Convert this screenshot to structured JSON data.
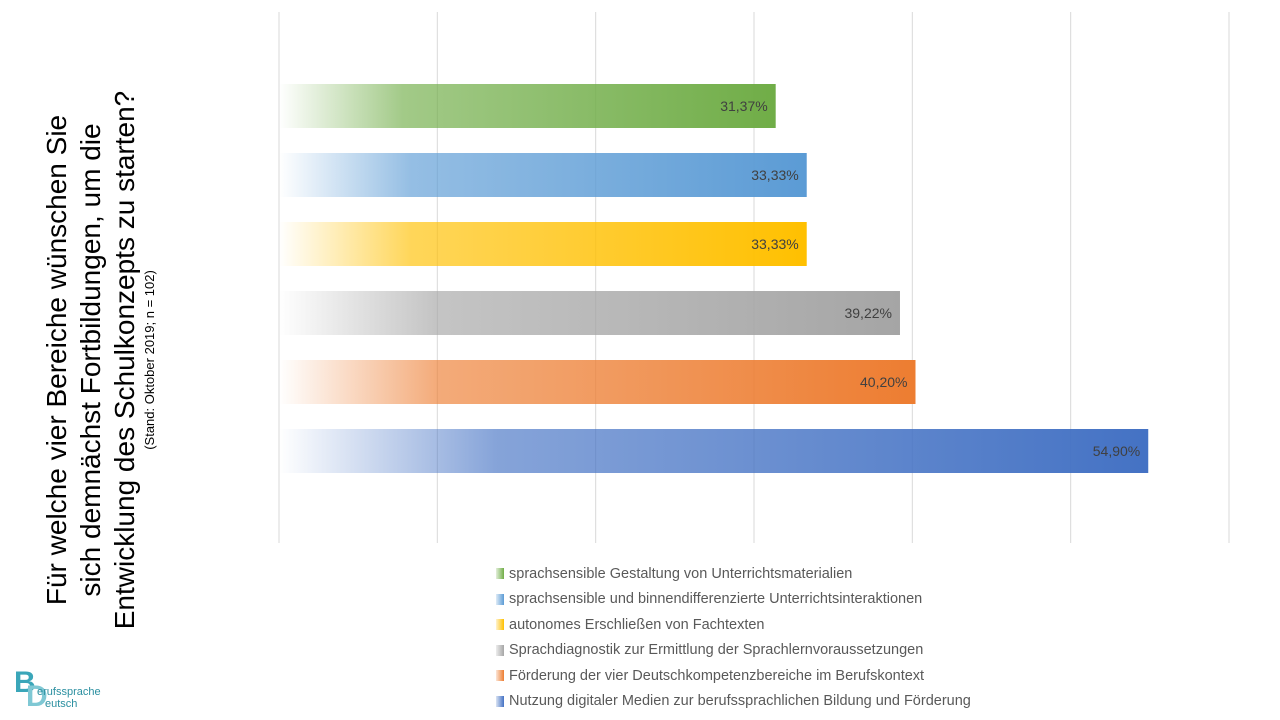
{
  "title": {
    "line1": "Für welche vier Bereiche wünschen Sie",
    "line2": "sich demnächst Fortbildungen, um die",
    "line3": "Entwicklung des Schulkonzepts zu starten?",
    "subtitle": "(Stand: Oktober 2019; n = 102)"
  },
  "chart_data": {
    "type": "bar",
    "orientation": "horizontal",
    "xlim": [
      0,
      60
    ],
    "grid": true,
    "legend_position": "bottom",
    "series": [
      {
        "name": "sprachsensible Gestaltung von Unterrichtsmaterialien",
        "value": 31.37,
        "label": "31,37%",
        "color": "#70ad47"
      },
      {
        "name": "sprachsensible und binnendifferenzierte Unterrichtsinteraktionen",
        "value": 33.33,
        "label": "33,33%",
        "color": "#5b9bd5"
      },
      {
        "name": "autonomes Erschließen von Fachtexten",
        "value": 33.33,
        "label": "33,33%",
        "color": "#ffc000"
      },
      {
        "name": "Sprachdiagnostik zur Ermittlung der Sprachlernvoraussetzungen",
        "value": 39.22,
        "label": "39,22%",
        "color": "#a5a5a5"
      },
      {
        "name": "Förderung der vier Deutschkompetenzbereiche im Berufskontext",
        "value": 40.2,
        "label": "40,20%",
        "color": "#ed7d31"
      },
      {
        "name": "Nutzung digitaler Medien zur berufssprachlichen Bildung und Förderung",
        "value": 54.9,
        "label": "54,90%",
        "color": "#4472c4"
      }
    ]
  },
  "logo": {
    "letter_b": "B",
    "letter_d": "D",
    "text1": "erufssprache",
    "text2": "eutsch"
  }
}
